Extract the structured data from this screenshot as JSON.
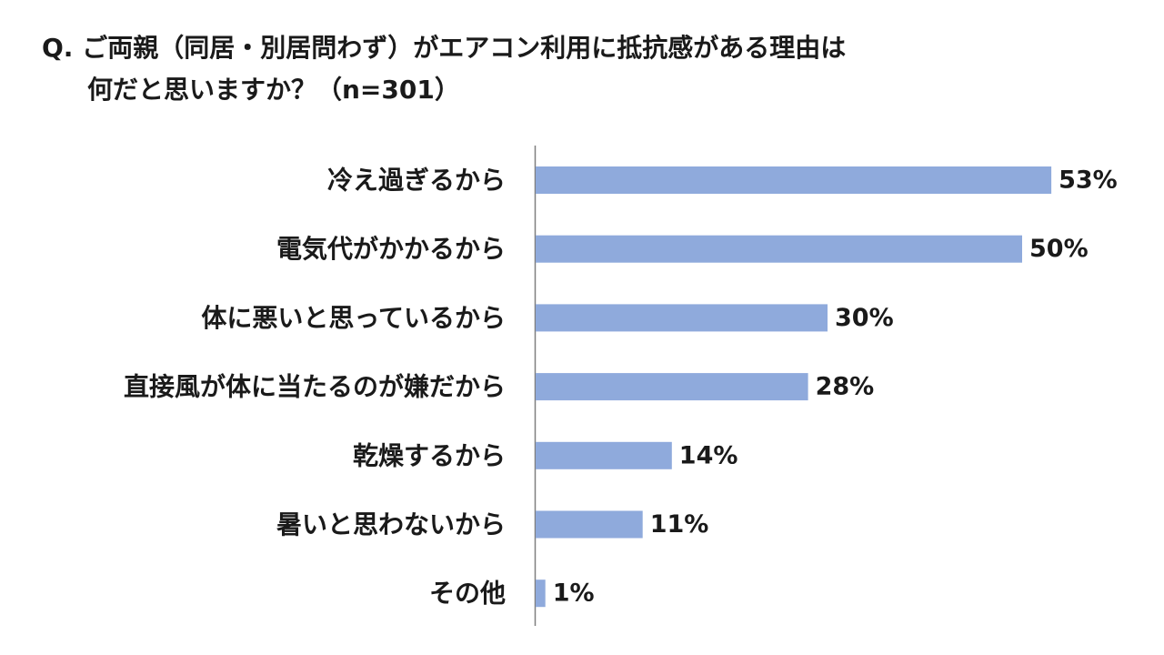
{
  "title": {
    "line1": "Q. ご両親（同居・別居問わず）がエアコン利用に抵抗感がある理由は",
    "line2": "何だと思いますか？（n=301）"
  },
  "colors": {
    "bar": "#8faadc",
    "axis": "#7f7f7f",
    "text": "#1a1a1a"
  },
  "chart_data": {
    "type": "bar",
    "orientation": "horizontal",
    "title": "Q. ご両親（同居・別居問わず）がエアコン利用に抵抗感がある理由は 何だと思いますか？（n=301）",
    "categories": [
      "冷え過ぎるから",
      "電気代がかかるから",
      "体に悪いと思っているから",
      "直接風が体に当たるのが嫌だから",
      "乾燥するから",
      "暑いと思わないから",
      "その他"
    ],
    "values": [
      53,
      50,
      30,
      28,
      14,
      11,
      1
    ],
    "value_labels": [
      "53%",
      "50%",
      "30%",
      "28%",
      "14%",
      "11%",
      "1%"
    ],
    "unit": "%",
    "xlim": [
      0,
      100
    ],
    "grid": false,
    "legend": "none"
  }
}
